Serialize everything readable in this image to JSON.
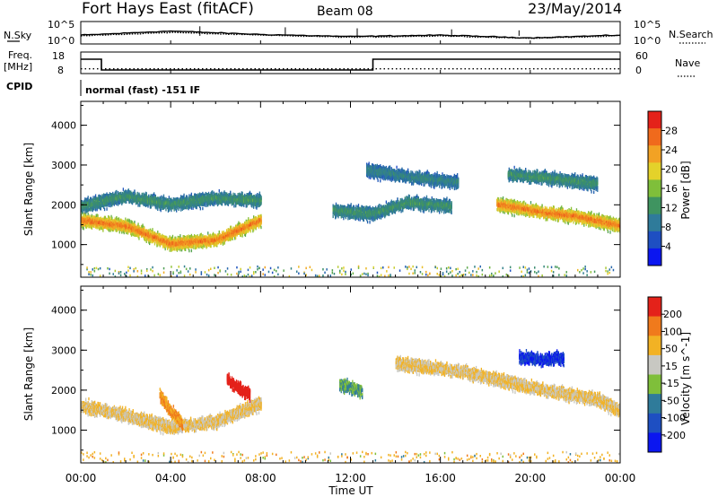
{
  "header": {
    "title": "Fort Hays East (fitACF)",
    "beam": "Beam 08",
    "date": "23/May/2014"
  },
  "noise_panel": {
    "left_label": "N.Sky",
    "right_label": "N.Search",
    "left_ticks": [
      "10^5",
      "10^0"
    ],
    "right_ticks": [
      "10^5",
      "10^0"
    ]
  },
  "freq_panel": {
    "left_label_1": "Freq.",
    "left_label_2": "[MHz]",
    "right_label": "Nave",
    "left_ticks": [
      "18",
      "8"
    ],
    "right_ticks": [
      "60",
      "0"
    ]
  },
  "cpid": {
    "label": "CPID",
    "text": "normal (fast) -151 IF"
  },
  "chart_data": [
    {
      "type": "line",
      "title": "Noise",
      "series": [
        {
          "name": "N.Sky",
          "style": "solid",
          "x": [
            "00:00",
            "04:00",
            "08:00",
            "12:00",
            "16:00",
            "20:00",
            "24:00"
          ],
          "values": [
            18,
            30,
            20,
            14,
            18,
            10,
            18
          ]
        },
        {
          "name": "N.Search",
          "style": "dotted",
          "x": [
            "00:00",
            "04:00",
            "08:00",
            "12:00",
            "16:00",
            "20:00",
            "24:00"
          ],
          "values": [
            16,
            26,
            18,
            12,
            16,
            9,
            16
          ]
        }
      ]
    },
    {
      "type": "line",
      "title": "Frequency and Nave",
      "series": [
        {
          "name": "Freq.",
          "unit": "MHz",
          "style": "solid",
          "x": [
            "00:00",
            "00:55",
            "00:55",
            "13:00",
            "13:00",
            "24:00"
          ],
          "values": [
            15,
            15,
            9,
            9,
            15,
            15
          ]
        },
        {
          "name": "Nave",
          "style": "dotted",
          "x": [
            "00:00",
            "24:00"
          ],
          "values": [
            10,
            10
          ]
        }
      ]
    },
    {
      "type": "heatmap",
      "parameter": "Power",
      "ylabel": "Slant Range [km]",
      "yticks": [
        "1000",
        "2000",
        "3000",
        "4000"
      ],
      "ylim": [
        180,
        4600
      ],
      "colorbar": {
        "label": "Power [dB]",
        "ticks": [
          "4",
          "8",
          "12",
          "16",
          "20",
          "24",
          "28"
        ],
        "range": [
          0,
          32
        ],
        "colors": [
          "#0b16f0",
          "#1e4fc2",
          "#2f7b9a",
          "#3f9460",
          "#7fbf3a",
          "#e4d22a",
          "#f2a224",
          "#f06a1c",
          "#e4221a"
        ]
      },
      "features": [
        {
          "x": [
            0,
            2,
            4,
            6,
            8
          ],
          "y": [
            1650,
            1500,
            1050,
            1150,
            1650
          ],
          "level": 28
        },
        {
          "x": [
            0,
            2,
            4,
            6,
            8
          ],
          "y": [
            2000,
            2250,
            2050,
            2200,
            2150
          ],
          "level": 12
        },
        {
          "x": [
            11.2,
            13,
            14.5,
            16.5
          ],
          "y": [
            1900,
            1800,
            2100,
            2000
          ],
          "level": 12
        },
        {
          "x": [
            12.7,
            14.5,
            16.8
          ],
          "y": [
            2900,
            2750,
            2600
          ],
          "level": 10
        },
        {
          "x": [
            18.5,
            20.5,
            22,
            24
          ],
          "y": [
            2050,
            1850,
            1750,
            1500
          ],
          "level": 28
        },
        {
          "x": [
            19,
            21,
            23
          ],
          "y": [
            2800,
            2700,
            2550
          ],
          "level": 12
        }
      ]
    },
    {
      "type": "heatmap",
      "parameter": "Velocity",
      "ylabel": "Slant Range [km]",
      "xlabel": "Time UT",
      "xticks": [
        "00:00",
        "04:00",
        "08:00",
        "12:00",
        "16:00",
        "20:00",
        "00:00"
      ],
      "xlim": [
        0,
        24
      ],
      "yticks": [
        "1000",
        "2000",
        "3000",
        "4000"
      ],
      "ylim": [
        180,
        4600
      ],
      "colorbar": {
        "label": "Velocity [m s^-1]",
        "ticks": [
          "200",
          "100",
          "50",
          "15",
          "-15",
          "-50",
          "-100",
          "-200"
        ],
        "colors": [
          "#0b16f0",
          "#1e4fc2",
          "#2f7b9a",
          "#7fbf3a",
          "#c8c8c2",
          "#f2b224",
          "#f07a1c",
          "#e4221a"
        ]
      },
      "features": [
        {
          "x": [
            0,
            2,
            4,
            6,
            8
          ],
          "y": [
            1650,
            1400,
            1100,
            1250,
            1700
          ],
          "level": -15
        },
        {
          "x": [
            3.5,
            4,
            4.5
          ],
          "y": [
            1900,
            1500,
            1200
          ],
          "level": -50
        },
        {
          "x": [
            6.5,
            7,
            7.5
          ],
          "y": [
            2300,
            2100,
            1900
          ],
          "level": -200
        },
        {
          "x": [
            11.5,
            12.5
          ],
          "y": [
            2200,
            2000
          ],
          "level": 50
        },
        {
          "x": [
            14,
            17,
            20,
            23,
            24
          ],
          "y": [
            2700,
            2500,
            2100,
            1800,
            1500
          ],
          "level": -15
        },
        {
          "x": [
            19.5,
            20.5,
            21.5
          ],
          "y": [
            2850,
            2800,
            2850
          ],
          "level": 200
        }
      ]
    }
  ]
}
